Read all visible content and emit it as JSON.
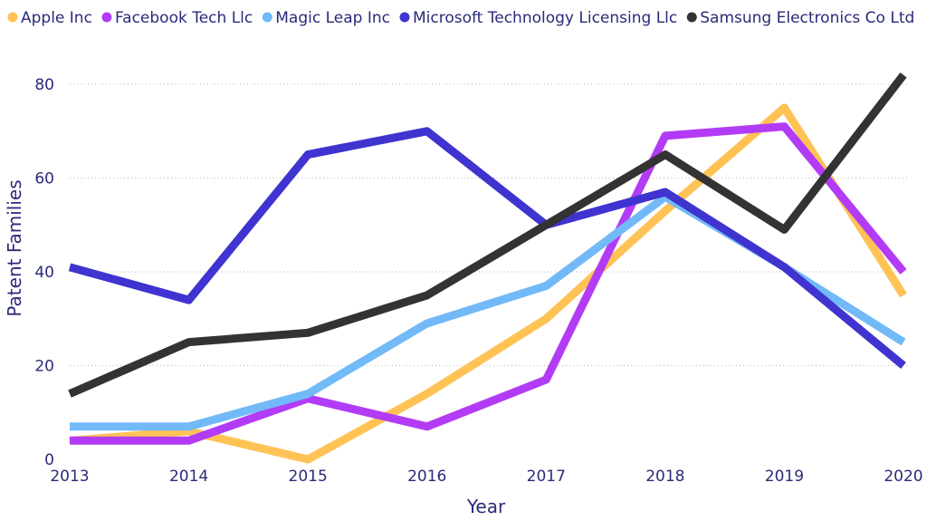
{
  "chart_data": {
    "type": "line",
    "x": [
      2013,
      2014,
      2015,
      2016,
      2017,
      2018,
      2019,
      2020
    ],
    "xlabel": "Year",
    "ylabel": "Patent Families",
    "ylim": [
      0,
      85
    ],
    "yticks": [
      0,
      20,
      40,
      60,
      80
    ],
    "grid": true,
    "legend_position": "top",
    "series": [
      {
        "name": "Apple Inc",
        "color": "#ffc255",
        "values": [
          4,
          6,
          0,
          14,
          30,
          53,
          75,
          35
        ]
      },
      {
        "name": "Facebook Tech Llc",
        "color": "#b23cf5",
        "values": [
          4,
          4,
          13,
          7,
          17,
          69,
          71,
          40
        ]
      },
      {
        "name": "Magic Leap Inc",
        "color": "#72b9f8",
        "values": [
          7,
          7,
          14,
          29,
          37,
          56,
          41,
          25
        ]
      },
      {
        "name": "Microsoft Technology Licensing Llc",
        "color": "#3f34d0",
        "values": [
          41,
          34,
          65,
          70,
          50,
          57,
          41,
          20
        ]
      },
      {
        "name": "Samsung Electronics Co Ltd",
        "color": "#333333",
        "values": [
          14,
          25,
          27,
          35,
          50,
          65,
          49,
          82
        ]
      }
    ]
  }
}
